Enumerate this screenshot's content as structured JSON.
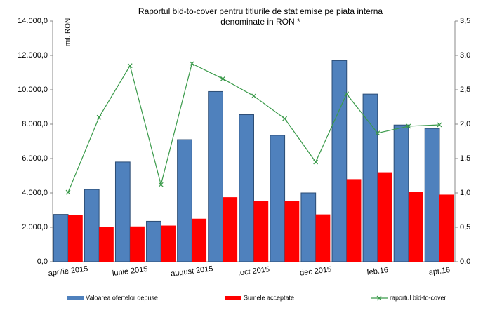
{
  "chart_data": {
    "type": "bar-line",
    "title": [
      "Raportul bid-to-cover pentru titlurile de stat emise pe piata interna",
      "denominate in RON *"
    ],
    "ylabel": "mil. RON",
    "categories": [
      "aprilie 2015",
      null,
      "iunie 2015",
      null,
      "august   2015",
      null,
      ".oct 2015",
      null,
      "dec 2015",
      null,
      "feb.16",
      null,
      "apr.16"
    ],
    "series": [
      {
        "name": "Valoarea ofertelor depuse",
        "color": "#4f81bd",
        "values": [
          2750,
          4200,
          5800,
          2350,
          7100,
          9900,
          8550,
          7350,
          4000,
          11700,
          9750,
          7950,
          7750
        ]
      },
      {
        "name": "Sumele acceptate",
        "color": "#ff0000",
        "values": [
          2700,
          2000,
          2050,
          2100,
          2500,
          3750,
          3550,
          3550,
          2750,
          4800,
          5200,
          4050,
          3900
        ]
      },
      {
        "name": "raportul bid-to-cover",
        "color": "#3a9a4a",
        "axis": "y2",
        "values": [
          1.01,
          2.1,
          2.85,
          1.12,
          2.88,
          2.66,
          2.41,
          2.08,
          1.45,
          2.44,
          1.87,
          1.97,
          1.99
        ]
      }
    ],
    "ylim": [
      0,
      14000
    ],
    "yticks": [
      {
        "value": 0,
        "label": "0,0"
      },
      {
        "value": 2000,
        "label": "2.000,0"
      },
      {
        "value": 4000,
        "label": "4.000,0"
      },
      {
        "value": 6000,
        "label": "6.000,0"
      },
      {
        "value": 8000,
        "label": "8.000,0"
      },
      {
        "value": 10000,
        "label": "10.000,0"
      },
      {
        "value": 12000,
        "label": "12.000,0"
      },
      {
        "value": 14000,
        "label": "14.000,0"
      }
    ],
    "y2lim": [
      0,
      3.5
    ],
    "y2ticks": [
      {
        "value": 0,
        "label": "0,0"
      },
      {
        "value": 0.5,
        "label": "0,5"
      },
      {
        "value": 1,
        "label": "1,0"
      },
      {
        "value": 1.5,
        "label": "1,5"
      },
      {
        "value": 2,
        "label": "2,0"
      },
      {
        "value": 2.5,
        "label": "2,5"
      },
      {
        "value": 3,
        "label": "3,0"
      },
      {
        "value": 3.5,
        "label": "3,5"
      }
    ],
    "grid": false,
    "legend": "bottom"
  }
}
